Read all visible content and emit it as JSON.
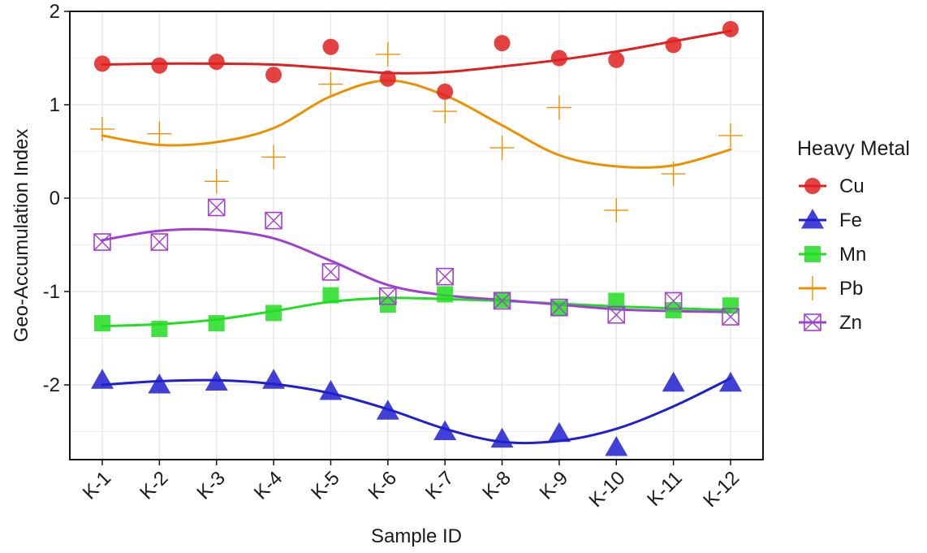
{
  "chart_data": {
    "type": "line",
    "title": "",
    "xlabel": "Sample ID",
    "ylabel": "Geo-Accumulation Index",
    "categories": [
      "K-1",
      "K-2",
      "K-3",
      "K-4",
      "K-5",
      "K-6",
      "K-7",
      "K-8",
      "K-9",
      "K-10",
      "K-11",
      "K-12"
    ],
    "ylim": [
      -2.8,
      2.0
    ],
    "yticks": [
      -2,
      -1,
      0,
      1,
      2
    ],
    "grid": true,
    "legend": {
      "title": "Heavy Metal",
      "position": "right"
    },
    "series": [
      {
        "name": "Cu",
        "color": "#e02020",
        "marker": "circle",
        "values": [
          1.44,
          1.42,
          1.46,
          1.32,
          1.62,
          1.28,
          1.14,
          1.66,
          1.5,
          1.48,
          1.64,
          1.81
        ],
        "trend": [
          1.43,
          1.44,
          1.44,
          1.43,
          1.39,
          1.34,
          1.35,
          1.41,
          1.48,
          1.57,
          1.68,
          1.79
        ]
      },
      {
        "name": "Fe",
        "color": "#2020d0",
        "marker": "triangle",
        "values": [
          -1.95,
          -2.0,
          -1.97,
          -1.95,
          -2.07,
          -2.28,
          -2.5,
          -2.58,
          -2.52,
          -2.67,
          -1.98,
          -1.98
        ],
        "trend": [
          -2.0,
          -1.96,
          -1.95,
          -1.99,
          -2.09,
          -2.26,
          -2.47,
          -2.61,
          -2.6,
          -2.47,
          -2.23,
          -1.93
        ]
      },
      {
        "name": "Mn",
        "color": "#22dd22",
        "marker": "square",
        "values": [
          -1.34,
          -1.4,
          -1.34,
          -1.23,
          -1.04,
          -1.14,
          -1.03,
          -1.09,
          -1.18,
          -1.1,
          -1.2,
          -1.15
        ],
        "trend": [
          -1.37,
          -1.35,
          -1.3,
          -1.21,
          -1.11,
          -1.07,
          -1.08,
          -1.1,
          -1.13,
          -1.16,
          -1.18,
          -1.2
        ]
      },
      {
        "name": "Pb",
        "color": "#f09000",
        "marker": "plus",
        "values": [
          0.74,
          0.69,
          0.18,
          0.44,
          1.22,
          1.54,
          0.93,
          0.54,
          0.97,
          -0.13,
          0.26,
          0.67
        ],
        "trend": [
          0.67,
          0.57,
          0.6,
          0.75,
          1.09,
          1.26,
          1.1,
          0.78,
          0.46,
          0.34,
          0.35,
          0.52
        ]
      },
      {
        "name": "Zn",
        "color": "#a040d0",
        "marker": "boxx",
        "values": [
          -0.47,
          -0.47,
          -0.1,
          -0.24,
          -0.79,
          -1.05,
          -0.84,
          -1.1,
          -1.17,
          -1.25,
          -1.1,
          -1.27
        ],
        "trend": [
          -0.45,
          -0.35,
          -0.34,
          -0.43,
          -0.67,
          -0.93,
          -1.04,
          -1.09,
          -1.14,
          -1.19,
          -1.21,
          -1.22
        ]
      }
    ]
  }
}
